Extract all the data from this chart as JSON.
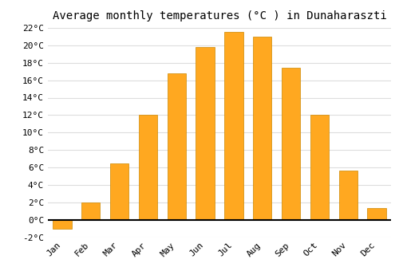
{
  "title": "Average monthly temperatures (°C ) in Dunaharaszti",
  "months": [
    "Jan",
    "Feb",
    "Mar",
    "Apr",
    "May",
    "Jun",
    "Jul",
    "Aug",
    "Sep",
    "Oct",
    "Nov",
    "Dec"
  ],
  "values": [
    -1.0,
    2.0,
    6.5,
    12.0,
    16.8,
    19.8,
    21.5,
    21.0,
    17.4,
    12.0,
    5.6,
    1.3
  ],
  "bar_color": "#FFA820",
  "bar_edge_color": "#CC8800",
  "background_color": "#FFFFFF",
  "grid_color": "#DDDDDD",
  "ylim": [
    -2,
    22
  ],
  "yticks": [
    -2,
    0,
    2,
    4,
    6,
    8,
    10,
    12,
    14,
    16,
    18,
    20,
    22
  ],
  "title_fontsize": 10,
  "tick_fontsize": 8
}
